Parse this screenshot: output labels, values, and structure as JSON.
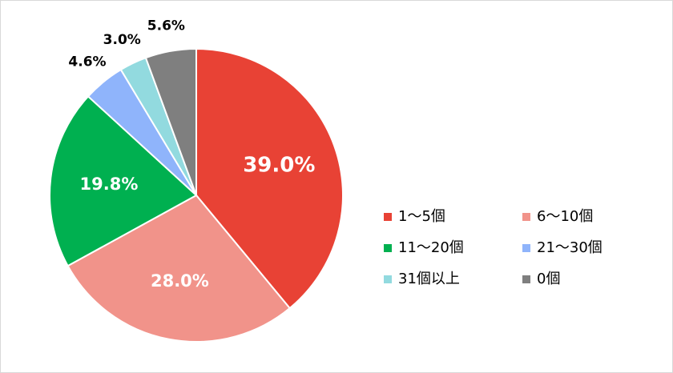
{
  "chart_data": {
    "type": "pie",
    "categories": [
      "1～5個",
      "6～10個",
      "11～20個",
      "21～30個",
      "31個以上",
      "0個"
    ],
    "values": [
      39.0,
      28.0,
      19.8,
      4.6,
      3.0,
      5.6
    ],
    "value_labels": [
      "39.0%",
      "28.0%",
      "19.8%",
      "4.6%",
      "3.0%",
      "5.6%"
    ],
    "colors": [
      "#e84235",
      "#f1938a",
      "#00b050",
      "#8fb4fb",
      "#92dadf",
      "#7f7f7f"
    ],
    "legend": "right"
  }
}
